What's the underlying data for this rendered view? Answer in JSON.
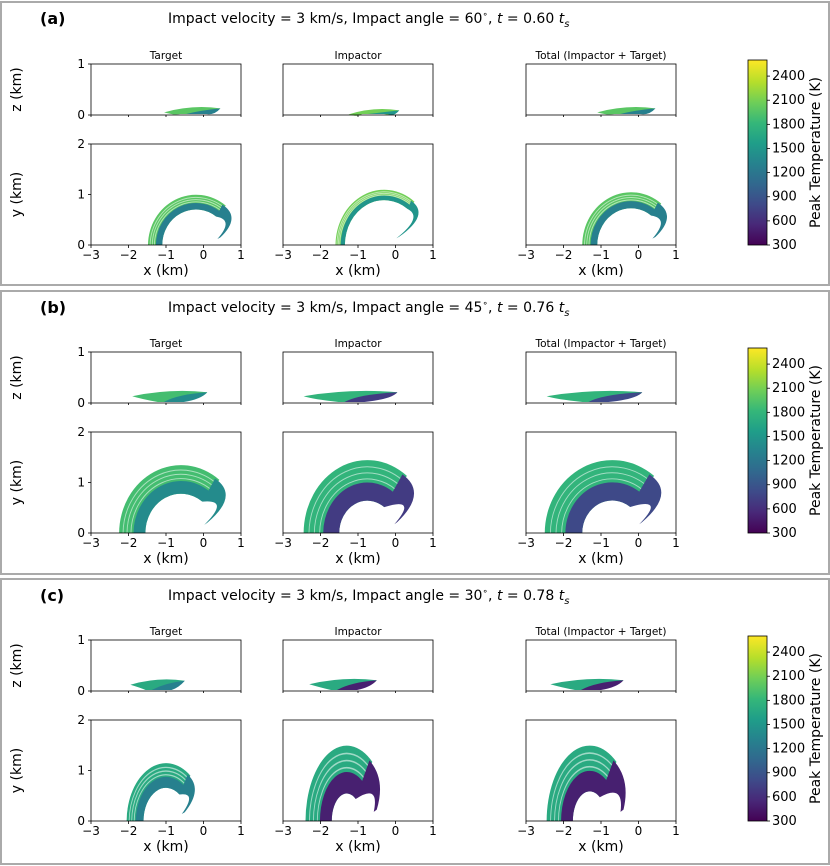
{
  "chart_data": {
    "type": "scatter",
    "description_units": "x, y, z in km; colour = peak temperature in K",
    "colorbar": {
      "label": "Peak Temperature (K)",
      "ticks": [
        "2400",
        "2100",
        "1800",
        "1500",
        "1200",
        "900",
        "600",
        "300"
      ],
      "range": [
        300,
        2600
      ],
      "colors": [
        "#440154",
        "#482878",
        "#3e4a89",
        "#31688e",
        "#26828e",
        "#1f9e89",
        "#35b779",
        "#6ece58",
        "#b5de2b",
        "#fde725"
      ]
    },
    "column_titles": [
      "Target",
      "Impactor",
      "Total (Impactor + Target)"
    ],
    "x_axis": {
      "label": "x (km)",
      "range": [
        -3,
        1
      ],
      "ticks": [
        "−3",
        "−2",
        "−1",
        "0",
        "1"
      ]
    },
    "z_axis": {
      "label": "z (km)",
      "range": [
        0,
        1
      ],
      "ticks": [
        "0",
        "1"
      ]
    },
    "y_axis": {
      "label": "y (km)",
      "range": [
        0,
        2
      ],
      "ticks": [
        "0",
        "1",
        "2"
      ]
    },
    "panels": [
      {
        "label": "(a)",
        "title_pre": "Impact velocity = 3 km/s, Impact angle =  60",
        "title_deg": "∘",
        "title_mid": ", ",
        "title_t": "t",
        "title_eq": " =   0.60 ",
        "title_ts": "t",
        "title_sub": "s",
        "velocity_km_s": 3,
        "angle_deg": 60,
        "time_ts": 0.6,
        "plumes": {
          "target": {
            "x0": -1.05,
            "x1": 0.45,
            "zh": 0.17,
            "ri": 0.9,
            "ro": 1.28,
            "cx": -0.2,
            "yh": 1.0,
            "temp_front": 2000,
            "temp_back": 1300
          },
          "impactor": {
            "x0": -1.25,
            "x1": 0.1,
            "zh": 0.13,
            "ri": 1.05,
            "ro": 1.3,
            "cx": -0.3,
            "yh": 1.1,
            "temp_front": 2100,
            "temp_back": 1500
          },
          "total": {
            "x0": -1.1,
            "x1": 0.45,
            "zh": 0.17,
            "ri": 0.9,
            "ro": 1.3,
            "cx": -0.2,
            "yh": 1.05,
            "temp_front": 2000,
            "temp_back": 1300
          }
        }
      },
      {
        "label": "(b)",
        "title_pre": "Impact velocity = 3 km/s, Impact angle =  45",
        "title_deg": "∘",
        "title_mid": ", ",
        "title_t": "t",
        "title_eq": " =   0.76 ",
        "title_ts": "t",
        "title_sub": "s",
        "velocity_km_s": 3,
        "angle_deg": 45,
        "time_ts": 0.76,
        "plumes": {
          "target": {
            "x0": -1.9,
            "x1": 0.1,
            "zh": 0.25,
            "ri": 0.95,
            "ro": 1.65,
            "cx": -0.6,
            "yh": 1.35,
            "temp_front": 1900,
            "temp_back": 1400
          },
          "impactor": {
            "x0": -2.45,
            "x1": 0.05,
            "zh": 0.25,
            "ri": 0.75,
            "ro": 1.7,
            "cx": -0.75,
            "yh": 1.45,
            "temp_front": 1800,
            "temp_back": 700
          },
          "total": {
            "x0": -2.45,
            "x1": 0.1,
            "zh": 0.25,
            "ri": 0.8,
            "ro": 1.8,
            "cx": -0.7,
            "yh": 1.45,
            "temp_front": 1800,
            "temp_back": 800
          }
        }
      },
      {
        "label": "(c)",
        "title_pre": "Impact velocity = 3 km/s, Impact angle =  30",
        "title_deg": "∘",
        "title_mid": ", ",
        "title_t": "t",
        "title_eq": " =   0.78 ",
        "title_ts": "t",
        "title_sub": "s",
        "velocity_km_s": 3,
        "angle_deg": 30,
        "time_ts": 0.78,
        "plumes": {
          "target": {
            "x0": -1.95,
            "x1": -0.5,
            "zh": 0.24,
            "ri": 0.6,
            "ro": 1.05,
            "cx": -1.0,
            "yh": 1.15,
            "temp_front": 1700,
            "temp_back": 1300
          },
          "impactor": {
            "x0": -2.3,
            "x1": -0.5,
            "zh": 0.25,
            "ri": 0.4,
            "ro": 1.1,
            "cx": -1.3,
            "yh": 1.5,
            "temp_front": 1700,
            "temp_back": 500
          },
          "total": {
            "x0": -2.35,
            "x1": -0.4,
            "zh": 0.25,
            "ri": 0.45,
            "ro": 1.15,
            "cx": -1.3,
            "yh": 1.5,
            "temp_front": 1700,
            "temp_back": 500
          }
        }
      }
    ]
  }
}
